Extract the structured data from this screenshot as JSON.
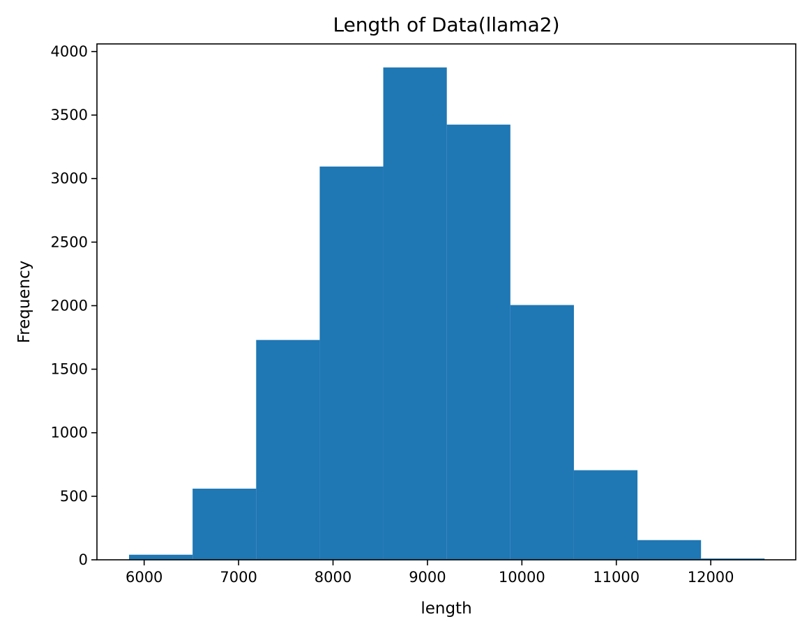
{
  "chart_data": {
    "type": "bar",
    "title": "Length of Data(llama2)",
    "xlabel": "length",
    "ylabel": "Frequency",
    "bin_edges": [
      5840,
      6513,
      7186,
      7859,
      8532,
      9205,
      9878,
      10551,
      11224,
      11897,
      12570
    ],
    "values": [
      40,
      560,
      1730,
      3095,
      3875,
      3425,
      2005,
      705,
      155,
      10
    ],
    "xlim": [
      5500,
      12900
    ],
    "ylim": [
      0,
      4060
    ],
    "xticks": [
      6000,
      7000,
      8000,
      9000,
      10000,
      11000,
      12000
    ],
    "yticks": [
      0,
      500,
      1000,
      1500,
      2000,
      2500,
      3000,
      3500,
      4000
    ],
    "bar_color": "#1f77b4",
    "grid": false,
    "legend": false
  }
}
